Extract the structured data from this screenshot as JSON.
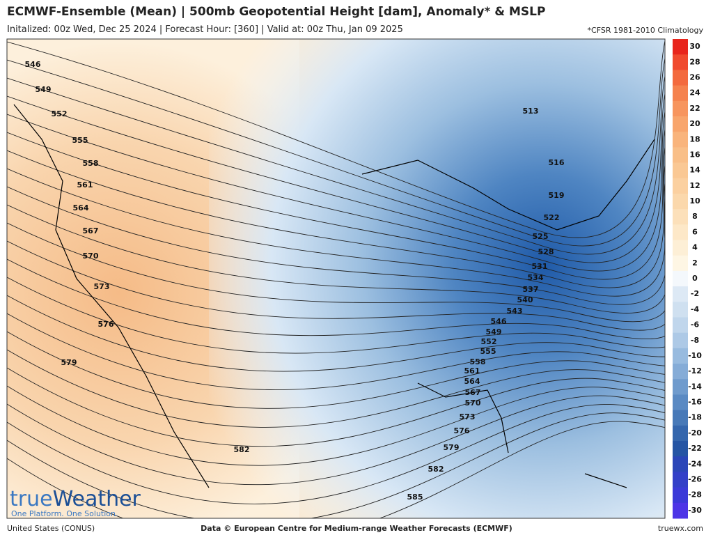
{
  "header": {
    "title": "ECMWF-Ensemble (Mean) | 500mb Geopotential Height [dam], Anomaly* & MSLP",
    "subtitle": "Initalized: 00z Wed, Dec 25 2024 | Forecast Hour: [360] | Valid at: 00z Thu, Jan 09 2025",
    "note": "*CFSR 1981-2010 Climatology"
  },
  "contour_labels": [
    546,
    549,
    552,
    555,
    558,
    561,
    564,
    567,
    570,
    573,
    576,
    579,
    582,
    585,
    582,
    579,
    576,
    573,
    570,
    567,
    564,
    561,
    558,
    555,
    552,
    549,
    546,
    543,
    540,
    537,
    534,
    531,
    528,
    525,
    522,
    519,
    516,
    513
  ],
  "colorbar": {
    "labels": [
      30,
      28,
      26,
      24,
      22,
      20,
      18,
      16,
      14,
      12,
      10,
      8,
      6,
      4,
      2,
      0,
      -2,
      -4,
      -6,
      -8,
      -10,
      -12,
      -14,
      -16,
      -18,
      -20,
      -22,
      -24,
      -26,
      -28,
      -30
    ],
    "colors": [
      "#e8251c",
      "#f04a2e",
      "#f36a3e",
      "#f5824e",
      "#f7955e",
      "#f8a56c",
      "#f9b47c",
      "#f9bf88",
      "#fac894",
      "#fbd0a0",
      "#fbd8ac",
      "#fce0ba",
      "#fde8c8",
      "#fdefd6",
      "#fef6e4",
      "#f4f8fc",
      "#dde9f5",
      "#cfe0f0",
      "#c0d6ec",
      "#adc9e6",
      "#98bbdf",
      "#85acd7",
      "#6f9bcd",
      "#5a8ac3",
      "#4779b8",
      "#3466ad",
      "#2555a4",
      "#2b46b8",
      "#3340c8",
      "#3b3ad8",
      "#4d35e6"
    ]
  },
  "logo": {
    "name_a": "true",
    "name_b": "Weather",
    "tagline": "One Platform. One Solution."
  },
  "footer": {
    "left": "United States (CONUS)",
    "center": "Data © European Centre for Medium-range Weather Forecasts (ECMWF)",
    "right": "truewx.com"
  }
}
